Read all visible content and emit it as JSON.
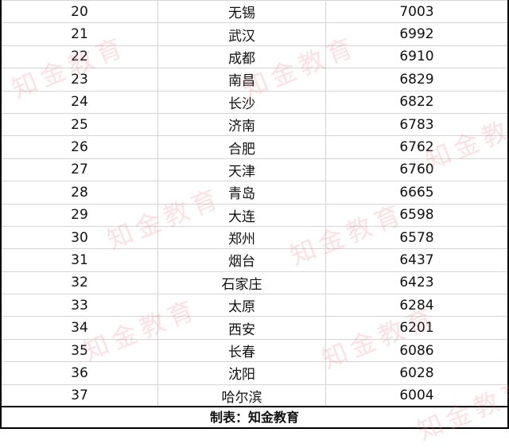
{
  "rows": [
    {
      "rank": "20",
      "city": "无锡",
      "value": "7003"
    },
    {
      "rank": "21",
      "city": "武汉",
      "value": "6992"
    },
    {
      "rank": "22",
      "city": "成都",
      "value": "6910"
    },
    {
      "rank": "23",
      "city": "南昌",
      "value": "6829"
    },
    {
      "rank": "24",
      "city": "长沙",
      "value": "6822"
    },
    {
      "rank": "25",
      "city": "济南",
      "value": "6783"
    },
    {
      "rank": "26",
      "city": "合肥",
      "value": "6762"
    },
    {
      "rank": "27",
      "city": "天津",
      "value": "6760"
    },
    {
      "rank": "28",
      "city": "青岛",
      "value": "6665"
    },
    {
      "rank": "29",
      "city": "大连",
      "value": "6598"
    },
    {
      "rank": "30",
      "city": "郑州",
      "value": "6578"
    },
    {
      "rank": "31",
      "city": "烟台",
      "value": "6437"
    },
    {
      "rank": "32",
      "city": "石家庄",
      "value": "6423"
    },
    {
      "rank": "33",
      "city": "太原",
      "value": "6284"
    },
    {
      "rank": "34",
      "city": "西安",
      "value": "6201"
    },
    {
      "rank": "35",
      "city": "长春",
      "value": "6086"
    },
    {
      "rank": "36",
      "city": "沈阳",
      "value": "6028"
    },
    {
      "rank": "37",
      "city": "哈尔滨",
      "value": "6004"
    }
  ],
  "footer": "制表：知金教育",
  "watermark": "知金教育"
}
